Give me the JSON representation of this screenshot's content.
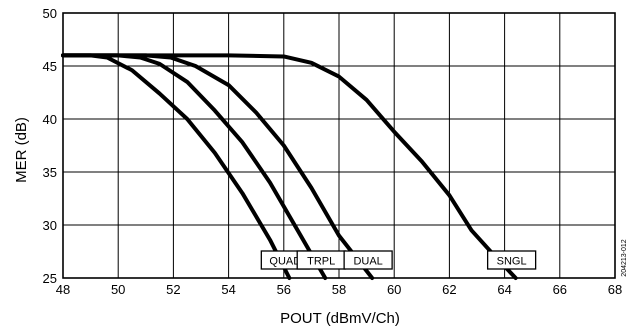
{
  "chart_data": {
    "type": "line",
    "xlabel": "POUT (dBmV/Ch)",
    "ylabel": "MER (dB)",
    "xlim": [
      48,
      68
    ],
    "ylim": [
      25,
      50
    ],
    "xticks": [
      "48",
      "50",
      "52",
      "54",
      "56",
      "58",
      "60",
      "62",
      "64",
      "66",
      "68"
    ],
    "yticks": [
      "25",
      "30",
      "35",
      "40",
      "45",
      "50"
    ],
    "grid": true,
    "figure_id": "204213-012",
    "series": [
      {
        "name": "QUAD",
        "x": [
          48,
          49,
          49.6,
          50.5,
          51.5,
          52.5,
          53.5,
          54.5,
          55.5,
          56.2
        ],
        "y": [
          46,
          46,
          45.8,
          44.6,
          42.4,
          40,
          36.8,
          33,
          28.6,
          25
        ]
      },
      {
        "name": "TRPL",
        "x": [
          48,
          50,
          50.8,
          51.5,
          52.5,
          53.5,
          54.5,
          55.5,
          56.5,
          57.5
        ],
        "y": [
          46,
          46,
          45.8,
          45.2,
          43.5,
          40.8,
          37.8,
          34,
          29.5,
          25
        ]
      },
      {
        "name": "DUAL",
        "x": [
          48,
          51,
          51.9,
          52.8,
          54,
          55,
          56,
          57,
          58,
          59.2
        ],
        "y": [
          46,
          46,
          45.8,
          45,
          43.2,
          40.6,
          37.5,
          33.5,
          29,
          25
        ]
      },
      {
        "name": "SNGL",
        "x": [
          48,
          54,
          56,
          57,
          58,
          59,
          60,
          61,
          62,
          62.8,
          63.6,
          64.4
        ],
        "y": [
          46,
          46,
          45.9,
          45.3,
          44,
          41.8,
          38.8,
          36,
          32.8,
          29.5,
          27.2,
          25
        ]
      }
    ]
  }
}
